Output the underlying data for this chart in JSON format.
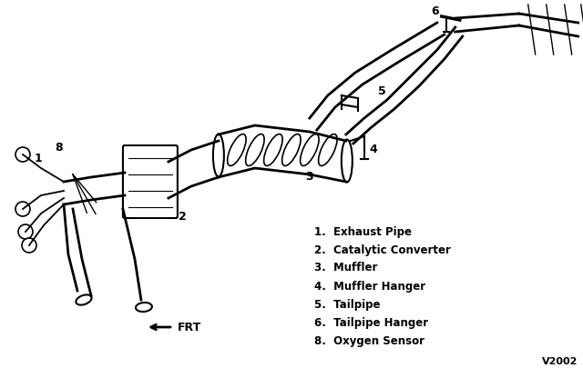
{
  "bg_color": "#ffffff",
  "legend_items": [
    "1.  Exhaust Pipe",
    "2.  Catalytic Converter",
    "3.  Muffler",
    "4.  Muffler Hanger",
    "5.  Tailpipe",
    "6.  Tailpipe Hanger",
    "8.  Oxygen Sensor"
  ],
  "legend_fontsize": 8.5,
  "label_color": "#000000",
  "diagram_color": "#000000",
  "watermark": "V2002",
  "watermark_fontsize": 8,
  "frt_fontsize": 9
}
